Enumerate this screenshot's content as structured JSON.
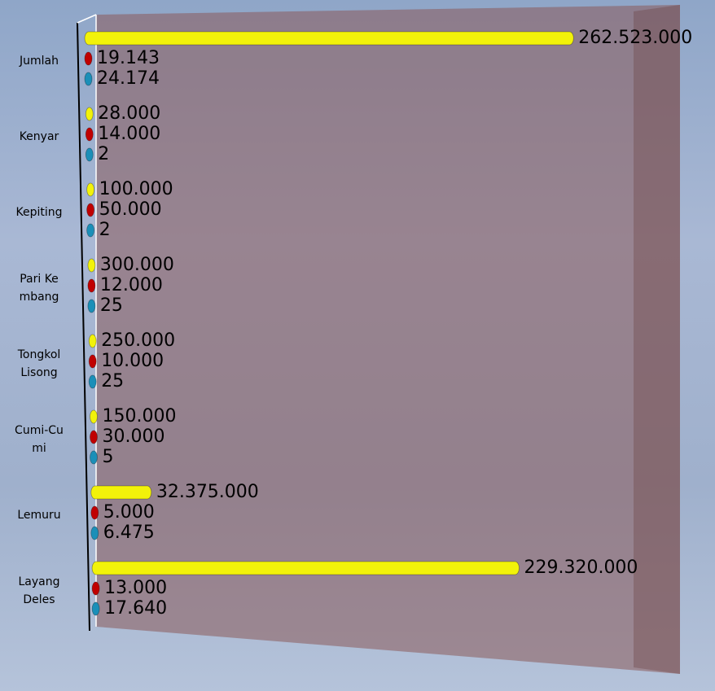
{
  "chart_data": {
    "type": "bar",
    "orientation": "horizontal",
    "categories": [
      "Jumlah",
      "Kenyar",
      "Kepiting",
      "Pari Kembang",
      "Tongkol Lisong",
      "Cumi-Cumi",
      "Lemuru",
      "Layang Deles"
    ],
    "xlim": [
      0,
      300000000
    ],
    "series": [
      {
        "color": "#f2f20a",
        "values": [
          262523000,
          28000,
          100000,
          300000,
          250000,
          150000,
          32375000,
          229320000
        ],
        "value_labels": [
          "262.523.000",
          "28.000",
          "100.000",
          "300.000",
          "250.000",
          "150.000",
          "32.375.000",
          "229.320.000"
        ]
      },
      {
        "color": "#c00000",
        "values": [
          19143,
          14000,
          50000,
          12000,
          10000,
          30000,
          5000,
          13000
        ],
        "value_labels": [
          "19.143",
          "14.000",
          "50.000",
          "12.000",
          "10.000",
          "30.000",
          "5.000",
          "13.000"
        ]
      },
      {
        "color": "#1b8fb8",
        "values": [
          24174,
          2,
          2,
          25,
          25,
          5,
          6475,
          17640
        ],
        "value_labels": [
          "24.174",
          "2",
          "2",
          "25",
          "25",
          "5",
          "6.475",
          "17.640"
        ]
      }
    ]
  }
}
